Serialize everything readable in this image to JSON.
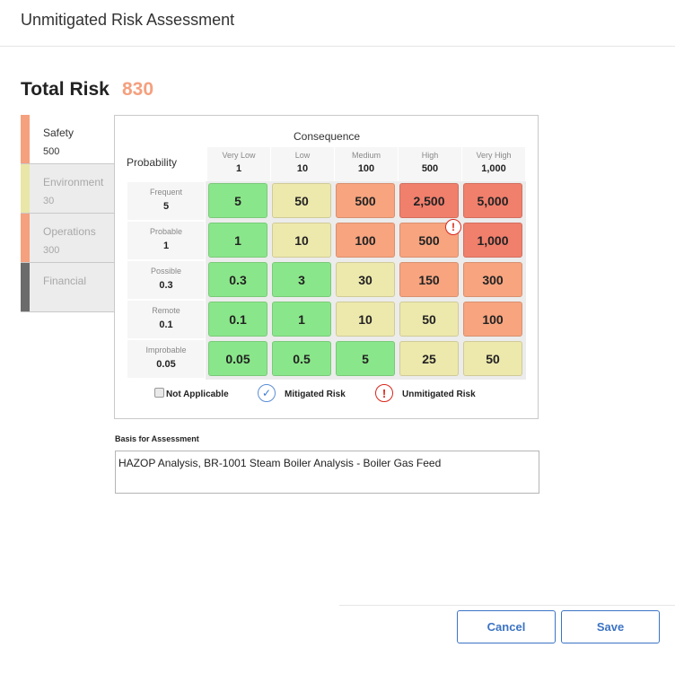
{
  "header": {
    "title": "Unmitigated Risk Assessment"
  },
  "total_risk": {
    "label": "Total Risk",
    "value": "830",
    "color": "#f5a07e"
  },
  "tabs": [
    {
      "label": "Safety",
      "value": "500",
      "bar_color": "#f5a07e",
      "active": true
    },
    {
      "label": "Environment",
      "value": "30",
      "bar_color": "#e9e6a8",
      "active": false
    },
    {
      "label": "Operations",
      "value": "300",
      "bar_color": "#f5a07e",
      "active": false
    },
    {
      "label": "Financial",
      "value": "",
      "bar_color": "#6b6b6b",
      "active": false
    }
  ],
  "matrix": {
    "consequence_title": "Consequence",
    "probability_title": "Probability",
    "columns": [
      {
        "label": "Very Low",
        "value": "1"
      },
      {
        "label": "Low",
        "value": "10"
      },
      {
        "label": "Medium",
        "value": "100"
      },
      {
        "label": "High",
        "value": "500"
      },
      {
        "label": "Very High",
        "value": "1,000"
      }
    ],
    "rows": [
      {
        "label": "Frequent",
        "value": "5"
      },
      {
        "label": "Probable",
        "value": "1"
      },
      {
        "label": "Possible",
        "value": "0.3"
      },
      {
        "label": "Remote",
        "value": "0.1"
      },
      {
        "label": "Improbable",
        "value": "0.05"
      }
    ],
    "cells": [
      [
        "5",
        "50",
        "500",
        "2,500",
        "5,000"
      ],
      [
        "1",
        "10",
        "100",
        "500",
        "1,000"
      ],
      [
        "0.3",
        "3",
        "30",
        "150",
        "300"
      ],
      [
        "0.1",
        "1",
        "10",
        "50",
        "100"
      ],
      [
        "0.05",
        "0.5",
        "5",
        "25",
        "50"
      ]
    ],
    "cell_colors": [
      [
        "#8ae68a",
        "#ede8ac",
        "#f7a47f",
        "#f07f6c",
        "#f07f6c"
      ],
      [
        "#8ae68a",
        "#ede8ac",
        "#f7a47f",
        "#f7a47f",
        "#f07f6c"
      ],
      [
        "#8ae68a",
        "#8ae68a",
        "#ede8ac",
        "#f7a47f",
        "#f7a47f"
      ],
      [
        "#8ae68a",
        "#8ae68a",
        "#ede8ac",
        "#ede8ac",
        "#f7a47f"
      ],
      [
        "#8ae68a",
        "#8ae68a",
        "#8ae68a",
        "#ede8ac",
        "#ede8ac"
      ]
    ],
    "unmitigated_cell": {
      "row": 1,
      "col": 3
    }
  },
  "legend": {
    "not_applicable": "Not Applicable",
    "mitigated": "Mitigated Risk",
    "unmitigated": "Unmitigated Risk"
  },
  "basis": {
    "label": "Basis for Assessment",
    "text": "HAZOP Analysis, BR-1001 Steam Boiler Analysis - Boiler Gas Feed"
  },
  "buttons": {
    "cancel": "Cancel",
    "save": "Save"
  },
  "icons": {
    "unmitigated_marker": "exclamation-circle-icon",
    "mitigated_marker": "check-circle-icon"
  }
}
